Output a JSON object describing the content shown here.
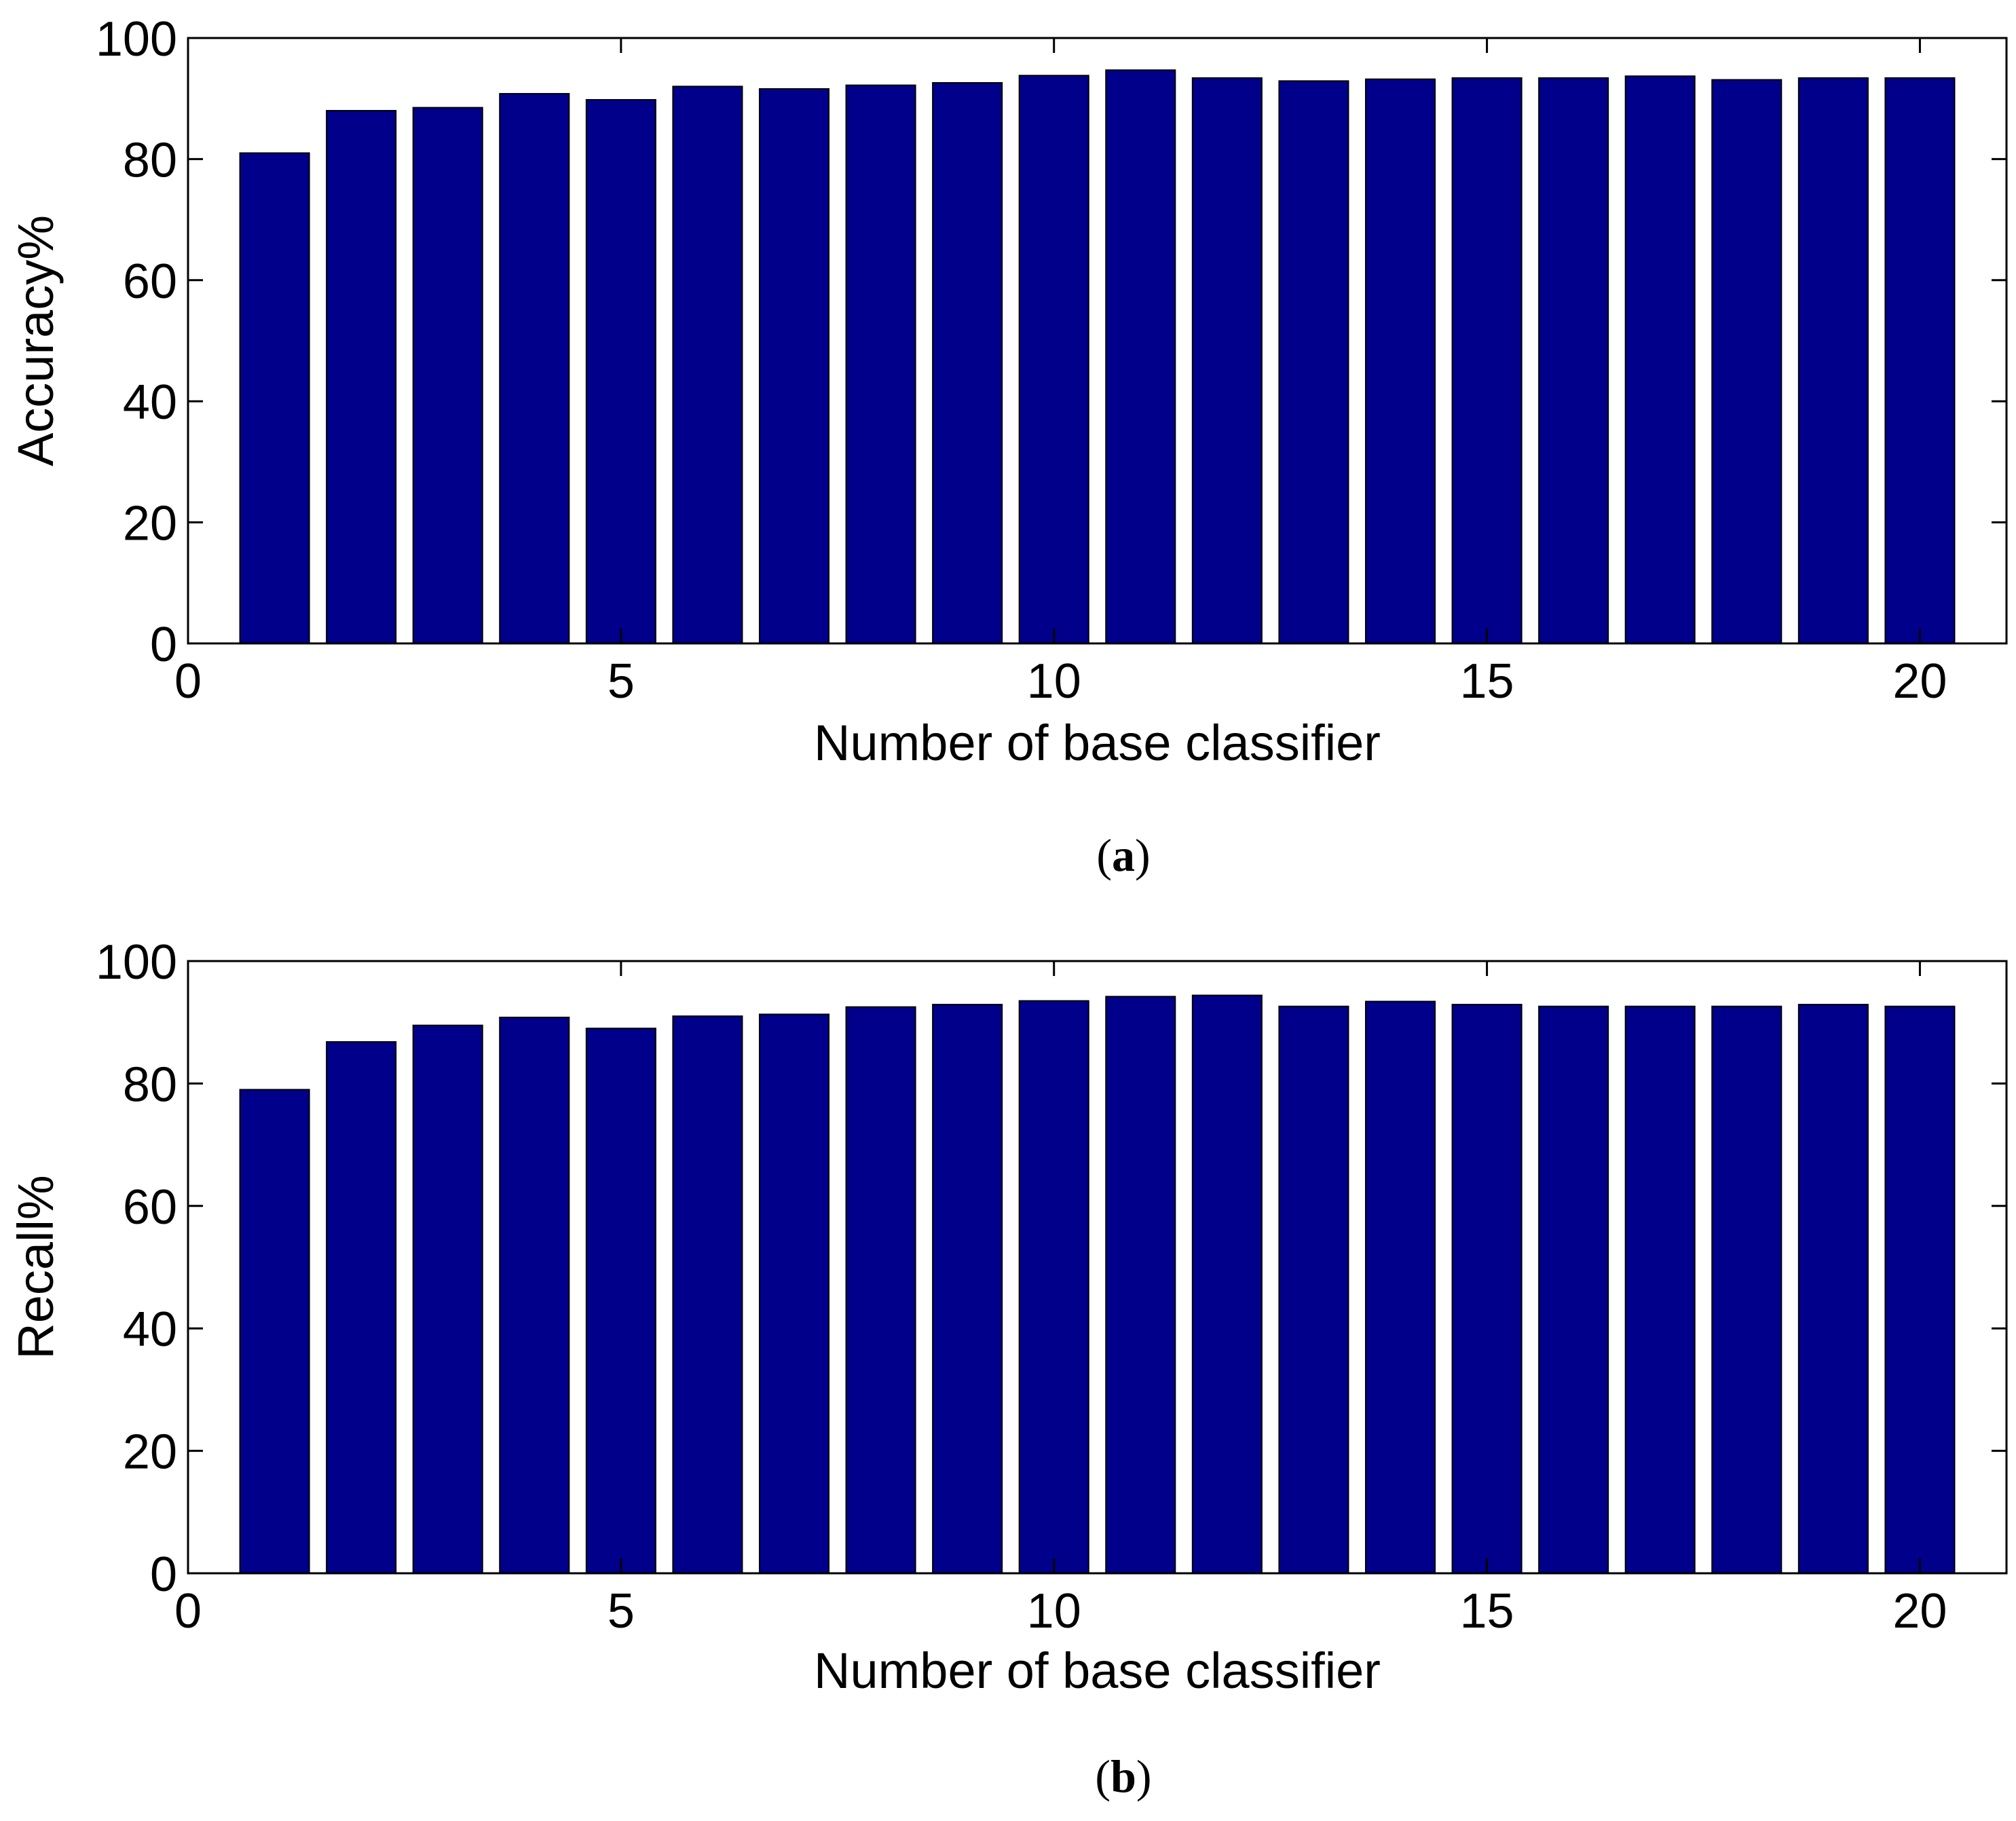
{
  "figure": {
    "bar_color": "#00008b",
    "panels": [
      {
        "caption_open": "(",
        "caption_letter": "a",
        "caption_close": ")"
      },
      {
        "caption_open": "(",
        "caption_letter": "b",
        "caption_close": ")"
      }
    ]
  },
  "chart_data": [
    {
      "type": "bar",
      "xlabel": "Number of base classifier",
      "ylabel": "Accuracy%",
      "xlim": [
        0,
        21
      ],
      "ylim": [
        0,
        100
      ],
      "xticks": [
        0,
        5,
        10,
        15,
        20
      ],
      "yticks": [
        0,
        20,
        40,
        60,
        80,
        100
      ],
      "grid": false,
      "bar_width": 0.8,
      "x": [
        1,
        2,
        3,
        4,
        5,
        6,
        7,
        8,
        9,
        10,
        11,
        12,
        13,
        14,
        15,
        16,
        17,
        18,
        19,
        20
      ],
      "values": [
        81.0,
        88.0,
        88.5,
        90.8,
        89.8,
        92.0,
        91.6,
        92.2,
        92.6,
        93.8,
        94.7,
        93.4,
        92.9,
        93.2,
        93.4,
        93.4,
        93.7,
        93.1,
        93.4,
        93.4
      ]
    },
    {
      "type": "bar",
      "xlabel": "Number of base classifier",
      "ylabel": "Recall%",
      "xlim": [
        0,
        21
      ],
      "ylim": [
        0,
        100
      ],
      "xticks": [
        0,
        5,
        10,
        15,
        20
      ],
      "yticks": [
        0,
        20,
        40,
        60,
        80,
        100
      ],
      "grid": false,
      "bar_width": 0.8,
      "x": [
        1,
        2,
        3,
        4,
        5,
        6,
        7,
        8,
        9,
        10,
        11,
        12,
        13,
        14,
        15,
        16,
        17,
        18,
        19,
        20
      ],
      "values": [
        79.0,
        86.8,
        89.5,
        90.8,
        89.0,
        91.0,
        91.3,
        92.5,
        92.9,
        93.5,
        94.2,
        94.4,
        92.6,
        93.4,
        92.9,
        92.6,
        92.6,
        92.6,
        92.9,
        92.6
      ]
    }
  ]
}
